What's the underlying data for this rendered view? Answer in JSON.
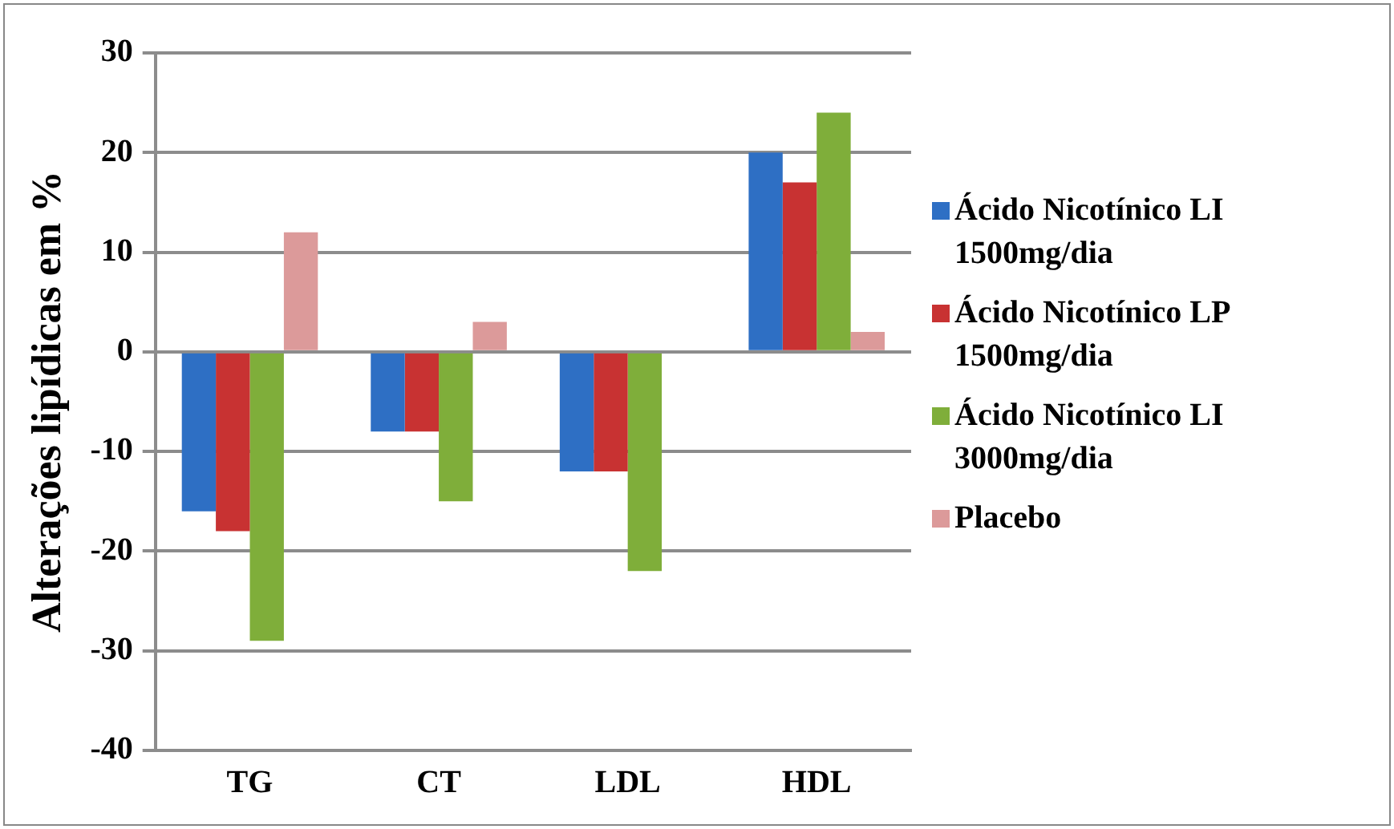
{
  "chart_data": {
    "type": "bar",
    "ylabel": "Alterações lipídicas em %",
    "categories": [
      "TG",
      "CT",
      "LDL",
      "HDL"
    ],
    "series": [
      {
        "name": "Ácido Nicotínico LI 1500mg/dia",
        "color": "#2e6fc4",
        "values": [
          -16,
          -8,
          -12,
          20
        ]
      },
      {
        "name": "Ácido Nicotínico LP 1500mg/dia",
        "color": "#c83232",
        "values": [
          -18,
          -8,
          -12,
          17
        ]
      },
      {
        "name": "Ácido Nicotínico LI 3000mg/dia",
        "color": "#7fae3a",
        "values": [
          -29,
          -15,
          -22,
          24
        ]
      },
      {
        "name": "Placebo",
        "color": "#dc9a9a",
        "values": [
          12,
          3,
          0,
          2
        ]
      }
    ],
    "ylim": [
      -40,
      30
    ],
    "yticks": [
      -40,
      -30,
      -20,
      -10,
      0,
      10,
      20,
      30
    ],
    "grid": "y",
    "legend": "right"
  }
}
